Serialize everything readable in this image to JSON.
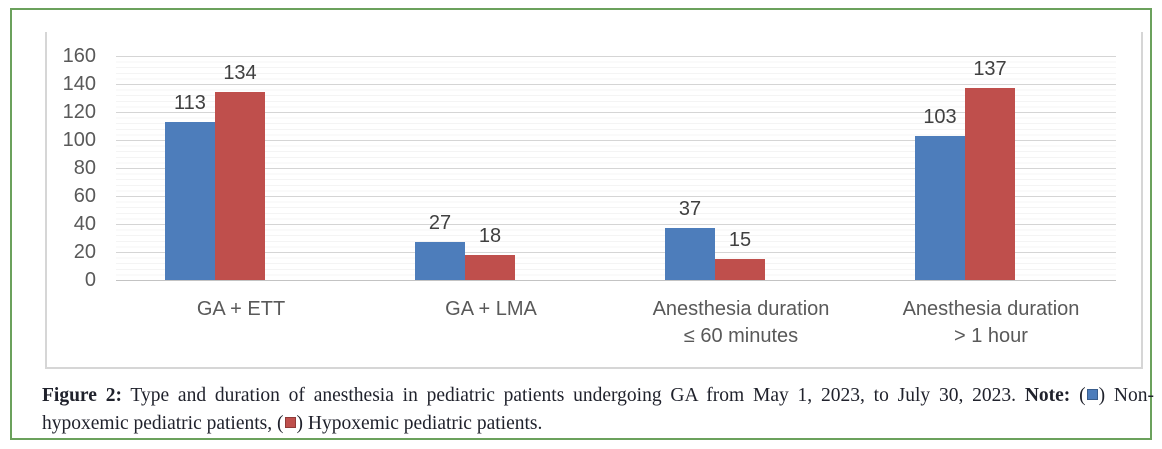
{
  "figure": {
    "frame_color": "#6ba15c"
  },
  "chart_data": {
    "type": "bar",
    "title": "",
    "xlabel": "",
    "ylabel": "",
    "categories": [
      "GA + ETT",
      "GA + LMA",
      "Anesthesia duration\n≤ 60 minutes",
      "Anesthesia duration\n> 1 hour"
    ],
    "series": [
      {
        "name": "Non-hypoxemic pediatric patients",
        "color": "#4d7dbb",
        "values": [
          113,
          27,
          37,
          103
        ]
      },
      {
        "name": "Hypoxemic pediatric patients",
        "color": "#bf4f4c",
        "values": [
          134,
          18,
          15,
          137
        ]
      }
    ],
    "ylim": [
      0,
      160
    ],
    "ytick_step": 20,
    "yticks": [
      0,
      20,
      40,
      60,
      80,
      100,
      120,
      140,
      160
    ],
    "grid": true,
    "value_labels": true,
    "legend_position": "in-caption"
  },
  "caption": {
    "figure_label": "Figure 2:",
    "body": "Type and duration of anesthesia in pediatric patients undergoing GA from May 1, 2023, to July 30, 2023.",
    "note_label": "Note:",
    "paren_open": "(",
    "paren_close": ")",
    "legend": [
      {
        "label": "Non-hypoxemic pediatric patients,",
        "color": "#4d7dbb"
      },
      {
        "label": "Hypoxemic pediatric patients.",
        "color": "#bf4f4c"
      }
    ]
  }
}
